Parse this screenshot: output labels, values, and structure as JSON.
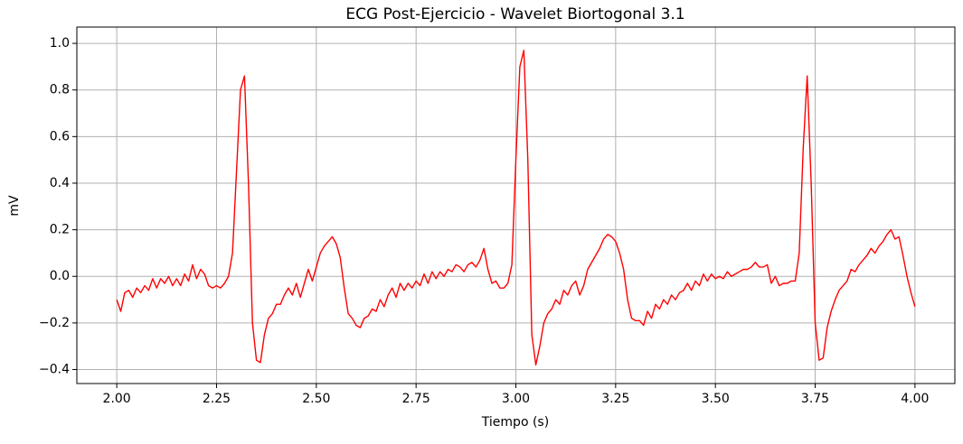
{
  "chart_data": {
    "type": "line",
    "title": "ECG Post-Ejercicio - Wavelet Biortogonal 3.1",
    "xlabel": "Tiempo (s)",
    "ylabel": "mV",
    "color": "#ff0000",
    "grid": true,
    "xlim": [
      1.9,
      4.1
    ],
    "ylim": [
      -0.46,
      1.07
    ],
    "xticks": [
      {
        "value": 2,
        "label": "2.00"
      },
      {
        "value": 2.25,
        "label": "2.25"
      },
      {
        "value": 2.5,
        "label": "2.50"
      },
      {
        "value": 2.75,
        "label": "2.75"
      },
      {
        "value": 3,
        "label": "3.00"
      },
      {
        "value": 3.25,
        "label": "3.25"
      },
      {
        "value": 3.5,
        "label": "3.50"
      },
      {
        "value": 3.75,
        "label": "3.75"
      },
      {
        "value": 4,
        "label": "4.00"
      }
    ],
    "yticks": [
      {
        "value": -0.4,
        "label": "−0.4"
      },
      {
        "value": -0.2,
        "label": "−0.2"
      },
      {
        "value": 0,
        "label": "0.0"
      },
      0.2,
      0.4,
      0.6,
      0.8,
      {
        "value": 1,
        "label": "1.0"
      }
    ],
    "x": [
      2,
      2.01,
      2.02,
      2.03,
      2.04,
      2.05,
      2.06,
      2.07,
      2.08,
      2.09,
      2.1,
      2.11,
      2.12,
      2.13,
      2.14,
      2.15,
      2.16,
      2.17,
      2.18,
      2.19,
      2.2,
      2.21,
      2.22,
      2.23,
      2.24,
      2.25,
      2.26,
      2.27,
      2.28,
      2.29,
      2.3,
      2.31,
      2.32,
      2.33,
      2.34,
      2.35,
      2.36,
      2.37,
      2.38,
      2.39,
      2.4,
      2.41,
      2.42,
      2.43,
      2.44,
      2.45,
      2.46,
      2.47,
      2.48,
      2.49,
      2.5,
      2.51,
      2.52,
      2.53,
      2.54,
      2.55,
      2.56,
      2.57,
      2.58,
      2.59,
      2.6,
      2.61,
      2.62,
      2.63,
      2.64,
      2.65,
      2.66,
      2.67,
      2.68,
      2.69,
      2.7,
      2.71,
      2.72,
      2.73,
      2.74,
      2.75,
      2.76,
      2.77,
      2.78,
      2.79,
      2.8,
      2.81,
      2.82,
      2.83,
      2.84,
      2.85,
      2.86,
      2.87,
      2.88,
      2.89,
      2.9,
      2.91,
      2.92,
      2.93,
      2.94,
      2.95,
      2.96,
      2.97,
      2.98,
      2.99,
      3,
      3.01,
      3.02,
      3.03,
      3.04,
      3.05,
      3.06,
      3.07,
      3.08,
      3.09,
      3.1,
      3.11,
      3.12,
      3.13,
      3.14,
      3.15,
      3.16,
      3.17,
      3.18,
      3.19,
      3.2,
      3.21,
      3.22,
      3.23,
      3.24,
      3.25,
      3.26,
      3.27,
      3.28,
      3.29,
      3.3,
      3.31,
      3.32,
      3.33,
      3.34,
      3.35,
      3.36,
      3.37,
      3.38,
      3.39,
      3.4,
      3.41,
      3.42,
      3.43,
      3.44,
      3.45,
      3.46,
      3.47,
      3.48,
      3.49,
      3.5,
      3.51,
      3.52,
      3.53,
      3.54,
      3.55,
      3.56,
      3.57,
      3.58,
      3.59,
      3.6,
      3.61,
      3.62,
      3.63,
      3.64,
      3.65,
      3.66,
      3.67,
      3.68,
      3.69,
      3.7,
      3.71,
      3.72,
      3.73,
      3.74,
      3.75,
      3.76,
      3.77,
      3.78,
      3.79,
      3.8,
      3.81,
      3.82,
      3.83,
      3.84,
      3.85,
      3.86,
      3.87,
      3.88,
      3.89,
      3.9,
      3.91,
      3.92,
      3.93,
      3.94,
      3.95,
      3.96,
      3.97,
      3.98,
      3.99,
      4
    ],
    "values": [
      -0.1,
      -0.15,
      -0.07,
      -0.06,
      -0.09,
      -0.05,
      -0.07,
      -0.04,
      -0.06,
      -0.01,
      -0.05,
      -0.01,
      -0.03,
      0.0,
      -0.04,
      -0.01,
      -0.04,
      0.01,
      -0.02,
      0.05,
      -0.01,
      0.03,
      0.01,
      -0.04,
      -0.05,
      -0.04,
      -0.05,
      -0.03,
      0.0,
      0.1,
      0.45,
      0.8,
      0.86,
      0.4,
      -0.2,
      -0.36,
      -0.37,
      -0.25,
      -0.18,
      -0.16,
      -0.12,
      -0.12,
      -0.08,
      -0.05,
      -0.08,
      -0.03,
      -0.09,
      -0.03,
      0.03,
      -0.02,
      0.04,
      0.1,
      0.13,
      0.15,
      0.17,
      0.14,
      0.08,
      -0.05,
      -0.16,
      -0.18,
      -0.21,
      -0.22,
      -0.18,
      -0.17,
      -0.14,
      -0.15,
      -0.1,
      -0.13,
      -0.08,
      -0.05,
      -0.09,
      -0.03,
      -0.06,
      -0.03,
      -0.05,
      -0.02,
      -0.04,
      0.01,
      -0.03,
      0.02,
      -0.01,
      0.02,
      0.0,
      0.03,
      0.02,
      0.05,
      0.04,
      0.02,
      0.05,
      0.06,
      0.04,
      0.07,
      0.12,
      0.03,
      -0.03,
      -0.02,
      -0.05,
      -0.05,
      -0.03,
      0.05,
      0.5,
      0.9,
      0.97,
      0.5,
      -0.25,
      -0.38,
      -0.3,
      -0.2,
      -0.16,
      -0.14,
      -0.1,
      -0.12,
      -0.06,
      -0.08,
      -0.04,
      -0.02,
      -0.08,
      -0.04,
      0.03,
      0.06,
      0.09,
      0.12,
      0.16,
      0.18,
      0.17,
      0.15,
      0.1,
      0.03,
      -0.1,
      -0.18,
      -0.19,
      -0.19,
      -0.21,
      -0.15,
      -0.18,
      -0.12,
      -0.14,
      -0.1,
      -0.12,
      -0.08,
      -0.1,
      -0.07,
      -0.06,
      -0.03,
      -0.06,
      -0.02,
      -0.04,
      0.01,
      -0.02,
      0.01,
      -0.01,
      0.0,
      -0.01,
      0.02,
      0.0,
      0.01,
      0.02,
      0.03,
      0.03,
      0.04,
      0.06,
      0.04,
      0.04,
      0.05,
      -0.03,
      0.0,
      -0.04,
      -0.03,
      -0.03,
      -0.02,
      -0.02,
      0.1,
      0.55,
      0.86,
      0.4,
      -0.2,
      -0.36,
      -0.35,
      -0.22,
      -0.15,
      -0.1,
      -0.06,
      -0.04,
      -0.02,
      0.03,
      0.02,
      0.05,
      0.07,
      0.09,
      0.12,
      0.1,
      0.13,
      0.15,
      0.18,
      0.2,
      0.16,
      0.17,
      0.09,
      0.0,
      -0.07,
      -0.13
    ]
  }
}
